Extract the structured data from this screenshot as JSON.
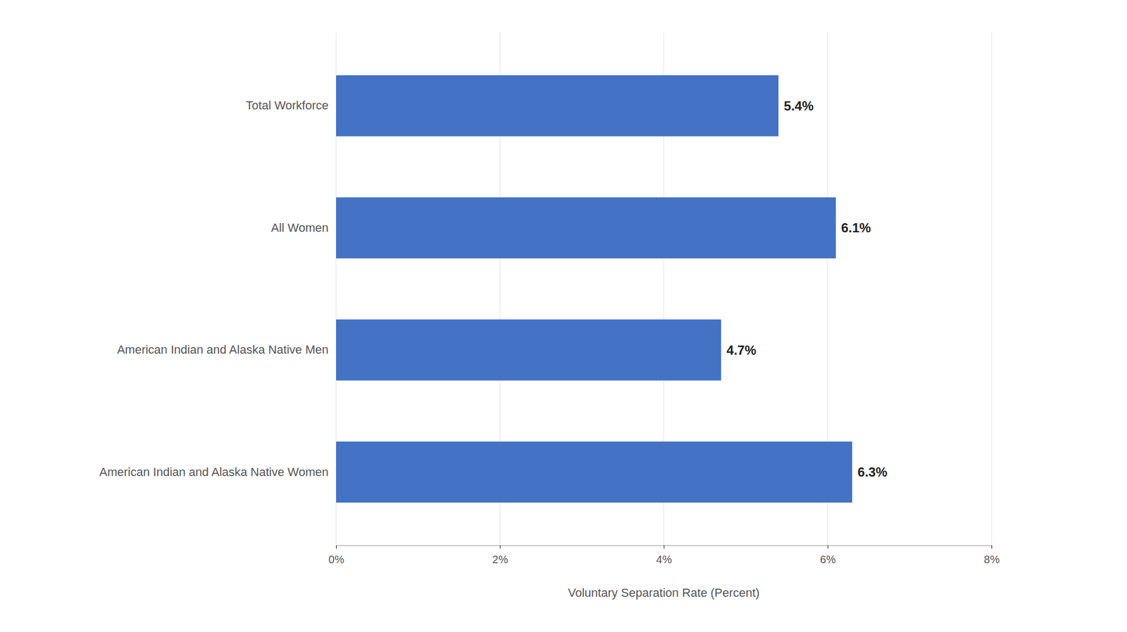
{
  "chart_data": {
    "type": "bar",
    "orientation": "horizontal",
    "categories": [
      "American Indian and Alaska Native Women",
      "American Indian and Alaska Native Men",
      "All Women",
      "Total Workforce"
    ],
    "values": [
      6.3,
      4.7,
      6.1,
      5.4
    ],
    "value_labels": [
      "6.3%",
      "4.7%",
      "6.1%",
      "5.4%"
    ],
    "color": "#4472C4",
    "xlabel": "Voluntary Separation Rate (Percent)",
    "xlim": [
      0,
      8
    ],
    "xticks": [
      {
        "value": 0,
        "label": "0%"
      },
      {
        "value": 2,
        "label": "2%"
      },
      {
        "value": 4,
        "label": "4%"
      },
      {
        "value": 6,
        "label": "6%"
      },
      {
        "value": 8,
        "label": "8%"
      }
    ],
    "grid": true,
    "data_labels": true
  }
}
